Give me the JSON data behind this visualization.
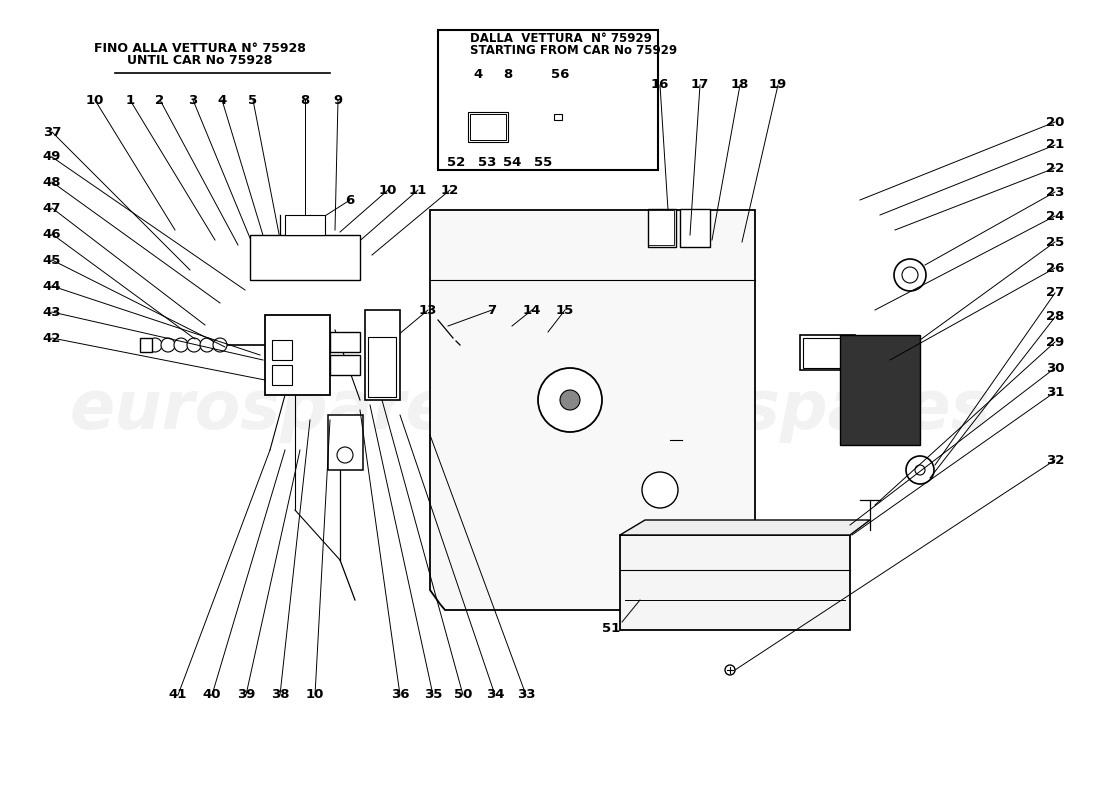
{
  "background_color": "#ffffff",
  "watermark_text": "eurospares",
  "watermark_color": "#cccccc",
  "box1_line1": "FINO ALLA VETTURA N° 75928",
  "box1_line2": "UNTIL CAR No 75928",
  "box2_line1": "DALLA  VETTURA  N° 75929",
  "box2_line2": "STARTING FROM CAR No 75929",
  "label_font_size": 9.5,
  "label_font_weight": "bold",
  "line_color": "#000000",
  "line_lw": 0.9
}
